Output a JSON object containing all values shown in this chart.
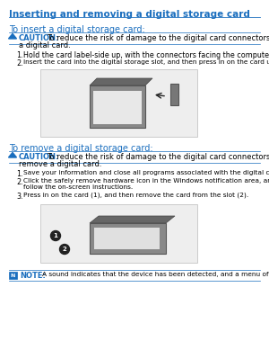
{
  "page_bg": "#ffffff",
  "title_text": "Inserting and removing a digital storage card",
  "title_color": "#1a6ebe",
  "title_fontsize": 7.5,
  "section1_heading": "To insert a digital storage card:",
  "section1_heading_color": "#1a6ebe",
  "section1_heading_fontsize": 7.0,
  "caution1_label": "CAUTION:",
  "caution1_label_color": "#1a6ebe",
  "caution1_label_fontsize": 6.0,
  "caution1_text_color": "#000000",
  "caution1_text_fontsize": 6.0,
  "section2_heading": "To remove a digital storage card:",
  "section2_heading_color": "#1a6ebe",
  "section2_heading_fontsize": 7.0,
  "caution2_label": "CAUTION:",
  "caution2_label_color": "#1a6ebe",
  "caution2_label_fontsize": 6.0,
  "caution2_text_color": "#000000",
  "caution2_text_fontsize": 6.0,
  "note2_label": "NOTE:",
  "note2_label_color": "#1a6ebe",
  "note2_fontsize": 6.0,
  "line_color": "#1a6ebe",
  "text_color": "#000000",
  "text_fontsize": 5.8,
  "line_width": 0.5
}
